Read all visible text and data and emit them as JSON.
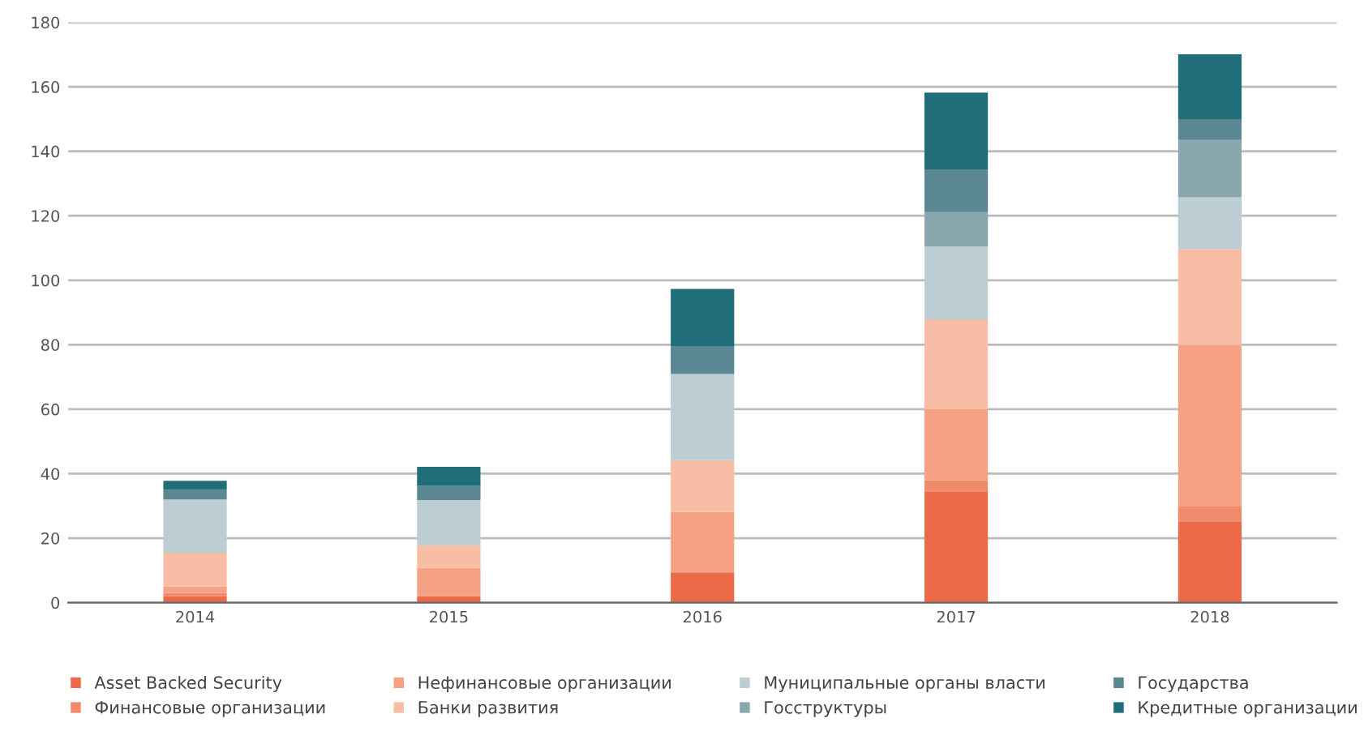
{
  "chart_data": {
    "type": "bar",
    "stacked": true,
    "categories": [
      "2014",
      "2015",
      "2016",
      "2017",
      "2018"
    ],
    "series": [
      {
        "name": "Asset Backed Security",
        "color": "#ec6a48",
        "values": [
          2,
          2,
          9.4,
          34.5,
          25.2
        ]
      },
      {
        "name": "Финансовые организации",
        "color": "#f18a6a",
        "values": [
          1,
          0,
          0,
          3.4,
          4.6
        ]
      },
      {
        "name": "Нефинансовые организации",
        "color": "#f4a283",
        "values": [
          2,
          8.8,
          18.7,
          22.1,
          50.1
        ]
      },
      {
        "name": "Банки развития",
        "color": "#f8bda5",
        "values": [
          10.5,
          7,
          16.1,
          27.9,
          29.8
        ]
      },
      {
        "name": "Муниципальные органы власти",
        "color": "#bccdd4",
        "values": [
          16.5,
          14,
          26.7,
          22.6,
          16
        ]
      },
      {
        "name": "Госструктуры",
        "color": "#8aa7b0",
        "values": [
          0,
          0,
          0,
          10.6,
          17.8
        ]
      },
      {
        "name": "Государства",
        "color": "#5a8791",
        "values": [
          3,
          4.5,
          8.5,
          13.3,
          6.5
        ]
      },
      {
        "name": "Кредитные организации",
        "color": "#1f6e7a",
        "values": [
          2.8,
          5.8,
          17.9,
          23.8,
          20.1
        ]
      }
    ],
    "ylim": [
      0,
      180
    ],
    "yticks": [
      0,
      20,
      40,
      60,
      80,
      100,
      120,
      140,
      160,
      180
    ],
    "grid": "y",
    "legend": "bottom"
  }
}
